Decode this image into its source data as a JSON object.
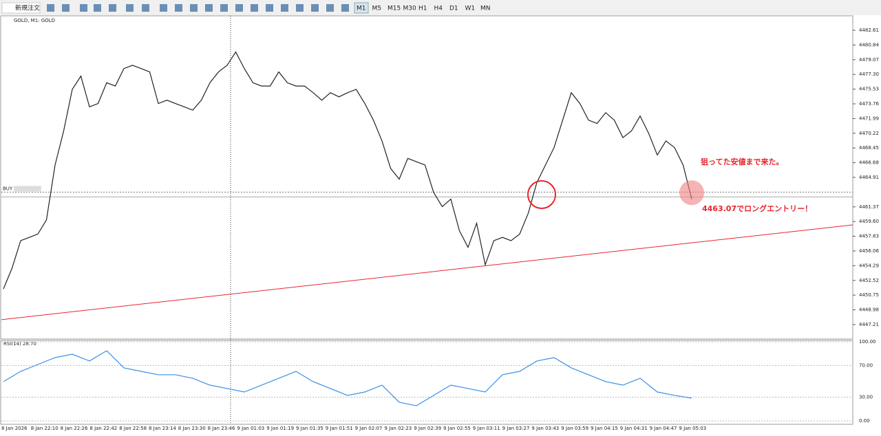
{
  "toolbar": {
    "new_order": "新規注文",
    "timeframes": [
      "M1",
      "M5",
      "M15",
      "M30",
      "H1",
      "H4",
      "D1",
      "W1",
      "MN"
    ]
  },
  "chart_data": {
    "type": "line",
    "title": "GOLD, M1: GOLD",
    "color": "#222222",
    "values": [
      4451.5,
      4454.0,
      4457.3,
      4457.7,
      4458.1,
      4459.8,
      4466.4,
      4470.5,
      4475.5,
      4477.1,
      4473.4,
      4473.8,
      4476.3,
      4475.9,
      4478.0,
      4478.4,
      4478.0,
      4477.6,
      4473.8,
      4474.2,
      4473.8,
      4473.4,
      4473.0,
      4474.2,
      4476.3,
      4477.6,
      4478.4,
      4480.0,
      4478.0,
      4476.3,
      4475.9,
      4475.9,
      4477.6,
      4476.3,
      4475.9,
      4475.9,
      4475.1,
      4474.2,
      4475.1,
      4474.6,
      4475.1,
      4475.5,
      4473.8,
      4471.8,
      4469.3,
      4466.0,
      4464.7,
      4467.2,
      4466.8,
      4466.4,
      4463.1,
      4461.4,
      4462.3,
      4458.5,
      4456.5,
      4459.4,
      4454.4,
      4457.3,
      4457.7,
      4457.3,
      4458.1,
      4460.6,
      4464.3,
      4466.4,
      4468.5,
      4471.8,
      4475.1,
      4473.8,
      4471.8,
      4471.4,
      4472.7,
      4471.8,
      4469.7,
      4470.5,
      4472.3,
      4470.2,
      4467.6,
      4469.3,
      4468.5,
      4466.4,
      4462.3
    ],
    "ylim": [
      4445.47,
      4484.43
    ],
    "yticks": [
      {
        "value": 4482.61,
        "label": "4482.61"
      },
      {
        "value": 4480.84,
        "label": "4480.84"
      },
      {
        "value": 4479.07,
        "label": "4479.07"
      },
      {
        "value": 4477.3,
        "label": "4477.30"
      },
      {
        "value": 4475.53,
        "label": "4475.53"
      },
      {
        "value": 4473.76,
        "label": "4473.76"
      },
      {
        "value": 4471.99,
        "label": "4471.99"
      },
      {
        "value": 4470.22,
        "label": "4470.22"
      },
      {
        "value": 4468.45,
        "label": "4468.45"
      },
      {
        "value": 4466.68,
        "label": "4466.68"
      },
      {
        "value": 4464.91,
        "label": "4464.91"
      },
      {
        "value": 4461.37,
        "label": "4461.37"
      },
      {
        "value": 4459.6,
        "label": "4459.60"
      },
      {
        "value": 4457.83,
        "label": "4457.83"
      },
      {
        "value": 4456.06,
        "label": "4456.06"
      },
      {
        "value": 4454.29,
        "label": "4454.29"
      },
      {
        "value": 4452.52,
        "label": "4452.52"
      },
      {
        "value": 4450.75,
        "label": "4450.75"
      },
      {
        "value": 4448.98,
        "label": "4448.98"
      },
      {
        "value": 4447.21,
        "label": "4447.21"
      }
    ],
    "time_labels": [
      "8 Jan 2026",
      "8 Jan 22:10",
      "8 Jan 22:26",
      "8 Jan 22:42",
      "8 Jan 22:58",
      "8 Jan 23:14",
      "8 Jan 23:30",
      "8 Jan 23:46",
      "9 Jan 01:03",
      "9 Jan 01:19",
      "9 Jan 01:35",
      "9 Jan 01:51",
      "9 Jan 02:07",
      "9 Jan 02:23",
      "9 Jan 02:39",
      "9 Jan 02:55",
      "9 Jan 03:11",
      "9 Jan 03:27",
      "9 Jan 03:43",
      "9 Jan 03:59",
      "9 Jan 04:15",
      "9 Jan 04:31",
      "9 Jan 04:47",
      "9 Jan 05:03"
    ],
    "buy_label": "BUY",
    "buy_line": 4463.14,
    "trendline": [
      4447.8,
      4459.2
    ],
    "entry": 4463.07,
    "annotations": [
      "狙ってた安値まで来た。",
      "4463.07でロングエントリー！"
    ]
  },
  "rsi": {
    "title": "RSI(14) 28.70",
    "color": "#3a8ee6",
    "ylim": [
      0,
      100
    ],
    "yticks": [
      {
        "value": 100,
        "label": "100.00"
      },
      {
        "value": 70,
        "label": "70.00"
      },
      {
        "value": 30,
        "label": "30.00"
      },
      {
        "value": 0,
        "label": "0.00"
      }
    ],
    "values": [
      49.6,
      62.6,
      71.3,
      80.0,
      84.3,
      75.7,
      88.7,
      67.0,
      62.6,
      58.3,
      58.3,
      53.9,
      45.2,
      40.9,
      36.5,
      45.2,
      53.9,
      62.6,
      49.6,
      40.9,
      32.2,
      36.5,
      45.2,
      23.5,
      19.1,
      32.2,
      45.2,
      40.9,
      36.5,
      58.3,
      62.6,
      75.7,
      80.0,
      67.0,
      58.3,
      49.6,
      45.2,
      53.9,
      36.5,
      32.2,
      28.7
    ]
  }
}
